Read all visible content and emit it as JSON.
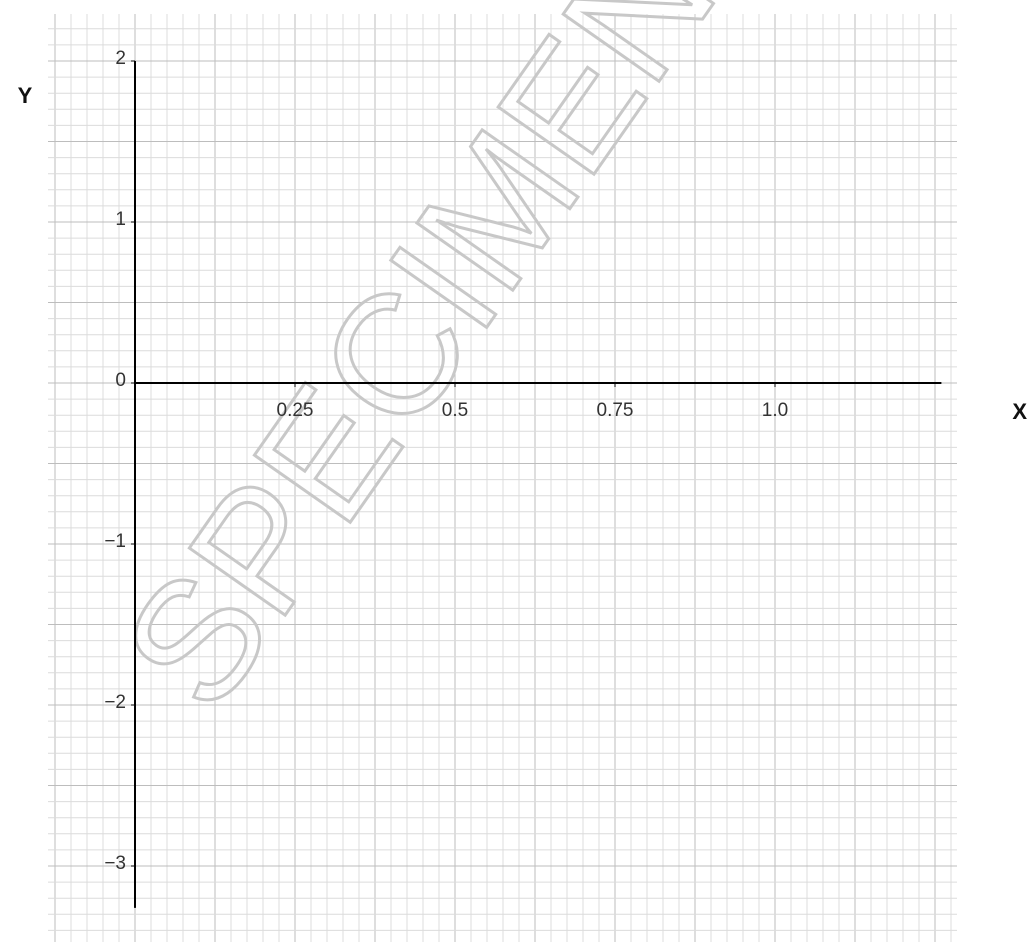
{
  "chart_data": {
    "type": "axes",
    "watermark": "SPECIMEN",
    "xlabel": "X",
    "ylabel": "Y",
    "xlim": [
      0,
      1.26
    ],
    "ylim": [
      -3.26,
      2
    ],
    "xticks": [
      0.25,
      0.5,
      0.75,
      {
        "value": 1,
        "label": "1.0"
      }
    ],
    "yticks": [
      {
        "value": -3,
        "label": "−3"
      },
      {
        "value": -2,
        "label": "−2"
      },
      {
        "value": -1,
        "label": "−1"
      },
      0,
      1,
      2
    ],
    "grid": true
  }
}
